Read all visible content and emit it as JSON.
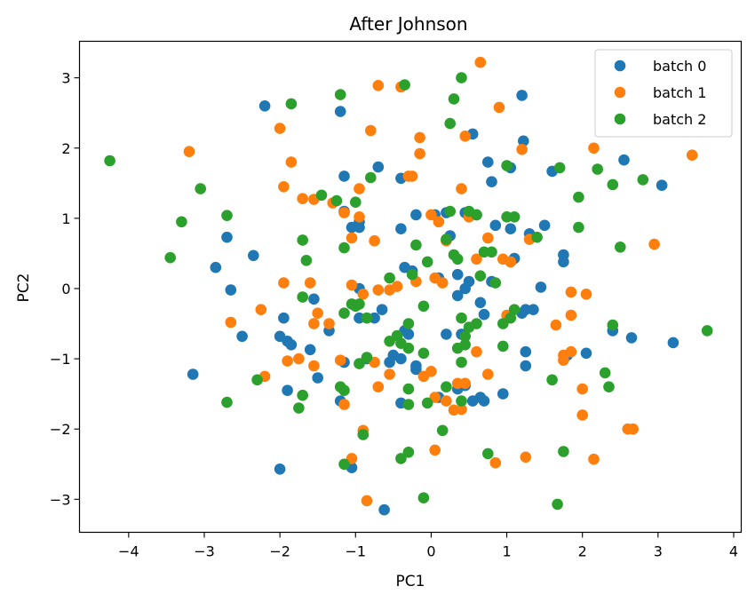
{
  "chart_data": {
    "type": "scatter",
    "title": "After Johnson",
    "xlabel": "PC1",
    "ylabel": "PC2",
    "xlim": [
      -4.65,
      4.1
    ],
    "ylim": [
      -3.47,
      3.52
    ],
    "xticks": [
      -4,
      -3,
      -2,
      -1,
      0,
      1,
      2,
      3,
      4
    ],
    "yticks": [
      -3,
      -2,
      -1,
      0,
      1,
      2,
      3
    ],
    "xtick_labels": [
      "−4",
      "−3",
      "−2",
      "−1",
      "0",
      "1",
      "2",
      "3",
      "4"
    ],
    "ytick_labels": [
      "−3",
      "−2",
      "−1",
      "0",
      "1",
      "2",
      "3"
    ],
    "grid": false,
    "legend_position": "upper right",
    "series": [
      {
        "name": "batch 0",
        "color": "#1f77b4",
        "points": [
          [
            -2.2,
            2.6
          ],
          [
            -1.2,
            2.52
          ],
          [
            1.2,
            2.75
          ],
          [
            0.55,
            2.2
          ],
          [
            1.22,
            2.1
          ],
          [
            2.55,
            1.83
          ],
          [
            -0.7,
            1.73
          ],
          [
            0.75,
            1.8
          ],
          [
            1.05,
            1.72
          ],
          [
            1.6,
            1.67
          ],
          [
            3.05,
            1.47
          ],
          [
            -1.15,
            1.6
          ],
          [
            -0.4,
            1.57
          ],
          [
            0.8,
            1.52
          ],
          [
            -1.15,
            1.1
          ],
          [
            -0.95,
            0.95
          ],
          [
            -0.2,
            1.05
          ],
          [
            0.05,
            1.05
          ],
          [
            0.2,
            1.08
          ],
          [
            0.45,
            1.08
          ],
          [
            0.6,
            1.05
          ],
          [
            0.85,
            0.9
          ],
          [
            -1.05,
            0.87
          ],
          [
            -0.95,
            0.87
          ],
          [
            -0.4,
            0.85
          ],
          [
            0.25,
            0.75
          ],
          [
            1.05,
            0.85
          ],
          [
            1.3,
            0.78
          ],
          [
            1.5,
            0.9
          ],
          [
            -2.7,
            0.73
          ],
          [
            -2.35,
            0.47
          ],
          [
            -2.85,
            0.3
          ],
          [
            1.75,
            0.48
          ],
          [
            1.75,
            0.38
          ],
          [
            1.1,
            0.43
          ],
          [
            1.05,
            0.38
          ],
          [
            -0.35,
            0.3
          ],
          [
            -0.25,
            0.25
          ],
          [
            0.35,
            0.2
          ],
          [
            0.1,
            0.15
          ],
          [
            0.5,
            0.1
          ],
          [
            0.8,
            0.1
          ],
          [
            -2.65,
            -0.02
          ],
          [
            -0.95,
            0.0
          ],
          [
            0.45,
            0.0
          ],
          [
            0.35,
            -0.1
          ],
          [
            1.45,
            0.02
          ],
          [
            -1.55,
            -0.15
          ],
          [
            -0.65,
            -0.3
          ],
          [
            0.65,
            -0.2
          ],
          [
            1.25,
            -0.3
          ],
          [
            1.35,
            -0.3
          ],
          [
            -1.95,
            -0.42
          ],
          [
            -0.75,
            -0.42
          ],
          [
            0.7,
            -0.37
          ],
          [
            1.2,
            -0.35
          ],
          [
            -0.95,
            -0.42
          ],
          [
            -0.35,
            -0.6
          ],
          [
            -1.35,
            -0.6
          ],
          [
            -2.5,
            -0.68
          ],
          [
            -2.0,
            -0.68
          ],
          [
            -1.9,
            -0.75
          ],
          [
            -1.85,
            -0.8
          ],
          [
            -0.3,
            -0.65
          ],
          [
            0.2,
            -0.65
          ],
          [
            0.4,
            -0.65
          ],
          [
            -1.6,
            -0.87
          ],
          [
            -0.5,
            -0.95
          ],
          [
            -0.4,
            -1.0
          ],
          [
            -0.55,
            -1.05
          ],
          [
            -0.85,
            -1.0
          ],
          [
            -1.15,
            -1.05
          ],
          [
            -0.2,
            -1.1
          ],
          [
            -0.2,
            -1.15
          ],
          [
            1.25,
            -0.9
          ],
          [
            2.05,
            -0.92
          ],
          [
            1.8,
            -0.95
          ],
          [
            2.4,
            -0.6
          ],
          [
            2.65,
            -0.7
          ],
          [
            3.2,
            -0.77
          ],
          [
            -3.15,
            -1.22
          ],
          [
            -1.5,
            -1.27
          ],
          [
            1.25,
            -1.1
          ],
          [
            -1.9,
            -1.45
          ],
          [
            -1.2,
            -1.6
          ],
          [
            0.1,
            -1.55
          ],
          [
            0.45,
            -1.38
          ],
          [
            0.95,
            -1.5
          ],
          [
            0.35,
            -1.43
          ],
          [
            -0.4,
            -1.63
          ],
          [
            0.55,
            -1.6
          ],
          [
            0.65,
            -1.55
          ],
          [
            0.7,
            -1.6
          ],
          [
            -2.0,
            -2.57
          ],
          [
            -1.05,
            -2.55
          ],
          [
            -0.62,
            -3.15
          ]
        ]
      },
      {
        "name": "batch 1",
        "color": "#ff7f0e",
        "points": [
          [
            0.65,
            3.22
          ],
          [
            -0.7,
            2.89
          ],
          [
            -0.4,
            2.87
          ],
          [
            0.9,
            2.58
          ],
          [
            -0.8,
            2.25
          ],
          [
            -2.0,
            2.28
          ],
          [
            1.2,
            1.98
          ],
          [
            2.15,
            2.0
          ],
          [
            3.45,
            1.9
          ],
          [
            -3.2,
            1.95
          ],
          [
            0.45,
            2.17
          ],
          [
            -0.15,
            2.15
          ],
          [
            -0.15,
            1.92
          ],
          [
            -1.85,
            1.8
          ],
          [
            -0.3,
            1.6
          ],
          [
            -0.25,
            1.6
          ],
          [
            -1.95,
            1.45
          ],
          [
            -0.95,
            1.42
          ],
          [
            0.4,
            1.42
          ],
          [
            -1.7,
            1.28
          ],
          [
            -1.55,
            1.27
          ],
          [
            -1.3,
            1.22
          ],
          [
            -1.15,
            1.08
          ],
          [
            -0.95,
            1.02
          ],
          [
            0.0,
            1.05
          ],
          [
            0.5,
            1.02
          ],
          [
            0.1,
            0.95
          ],
          [
            -1.05,
            0.72
          ],
          [
            -0.75,
            0.68
          ],
          [
            0.2,
            0.68
          ],
          [
            0.75,
            0.72
          ],
          [
            1.3,
            0.7
          ],
          [
            2.95,
            0.63
          ],
          [
            -1.95,
            0.08
          ],
          [
            -1.6,
            0.08
          ],
          [
            -1.05,
            0.05
          ],
          [
            0.05,
            0.15
          ],
          [
            0.15,
            0.08
          ],
          [
            0.95,
            0.42
          ],
          [
            1.05,
            0.38
          ],
          [
            0.6,
            0.42
          ],
          [
            -0.9,
            -0.08
          ],
          [
            -0.7,
            -0.02
          ],
          [
            -0.55,
            -0.02
          ],
          [
            -0.45,
            0.03
          ],
          [
            -0.2,
            0.1
          ],
          [
            1.85,
            -0.05
          ],
          [
            2.05,
            -0.08
          ],
          [
            -2.25,
            -0.3
          ],
          [
            -1.5,
            -0.35
          ],
          [
            -2.65,
            -0.48
          ],
          [
            -1.55,
            -0.5
          ],
          [
            -1.35,
            -0.5
          ],
          [
            1.65,
            -0.52
          ],
          [
            1.85,
            -0.38
          ],
          [
            1.0,
            -0.38
          ],
          [
            -1.2,
            -1.02
          ],
          [
            -1.9,
            -1.03
          ],
          [
            -1.75,
            -1.0
          ],
          [
            -1.55,
            -1.1
          ],
          [
            -0.75,
            -1.05
          ],
          [
            -0.55,
            -1.22
          ],
          [
            -0.1,
            -1.25
          ],
          [
            0.0,
            -1.18
          ],
          [
            0.6,
            -0.9
          ],
          [
            0.75,
            -1.22
          ],
          [
            1.75,
            -0.95
          ],
          [
            1.85,
            -0.9
          ],
          [
            1.75,
            -1.02
          ],
          [
            2.0,
            -1.43
          ],
          [
            -2.2,
            -1.25
          ],
          [
            -0.7,
            -1.4
          ],
          [
            0.2,
            -1.6
          ],
          [
            0.35,
            -1.35
          ],
          [
            0.45,
            -1.35
          ],
          [
            0.05,
            -1.55
          ],
          [
            0.3,
            -1.73
          ],
          [
            2.0,
            -1.8
          ],
          [
            -1.15,
            -1.65
          ],
          [
            0.4,
            -1.72
          ],
          [
            -0.9,
            -2.02
          ],
          [
            0.05,
            -2.3
          ],
          [
            0.85,
            -2.48
          ],
          [
            1.25,
            -2.4
          ],
          [
            2.15,
            -2.43
          ],
          [
            2.6,
            -2.0
          ],
          [
            2.67,
            -2.0
          ],
          [
            -1.05,
            -2.42
          ],
          [
            -0.85,
            -3.02
          ]
        ]
      },
      {
        "name": "batch 2",
        "color": "#2ca02c",
        "points": [
          [
            -0.35,
            2.9
          ],
          [
            0.4,
            3.0
          ],
          [
            -1.2,
            2.76
          ],
          [
            -1.85,
            2.63
          ],
          [
            0.3,
            2.7
          ],
          [
            0.25,
            2.35
          ],
          [
            -4.25,
            1.82
          ],
          [
            1.0,
            1.75
          ],
          [
            1.7,
            1.72
          ],
          [
            2.2,
            1.7
          ],
          [
            2.8,
            1.55
          ],
          [
            2.4,
            1.48
          ],
          [
            -3.05,
            1.42
          ],
          [
            -0.8,
            1.58
          ],
          [
            -1.45,
            1.33
          ],
          [
            -1.25,
            1.25
          ],
          [
            1.95,
            1.3
          ],
          [
            0.25,
            1.1
          ],
          [
            0.6,
            1.05
          ],
          [
            0.5,
            1.1
          ],
          [
            1.0,
            1.02
          ],
          [
            1.1,
            1.02
          ],
          [
            -2.7,
            1.04
          ],
          [
            -3.3,
            0.95
          ],
          [
            -1.0,
            1.23
          ],
          [
            1.95,
            0.87
          ],
          [
            -0.2,
            0.62
          ],
          [
            0.2,
            0.7
          ],
          [
            -1.15,
            0.58
          ],
          [
            -1.7,
            0.69
          ],
          [
            1.4,
            0.73
          ],
          [
            2.5,
            0.59
          ],
          [
            -3.45,
            0.44
          ],
          [
            -1.65,
            0.4
          ],
          [
            0.35,
            0.42
          ],
          [
            0.3,
            0.48
          ],
          [
            0.7,
            0.52
          ],
          [
            0.8,
            0.52
          ],
          [
            -0.55,
            0.15
          ],
          [
            -0.05,
            0.38
          ],
          [
            -0.25,
            0.2
          ],
          [
            0.65,
            0.18
          ],
          [
            0.85,
            0.08
          ],
          [
            -1.7,
            -0.12
          ],
          [
            -0.1,
            -0.25
          ],
          [
            -0.95,
            -0.22
          ],
          [
            -1.05,
            -0.22
          ],
          [
            -1.15,
            -0.35
          ],
          [
            -1.0,
            -0.25
          ],
          [
            -0.85,
            -0.42
          ],
          [
            0.4,
            -0.42
          ],
          [
            0.6,
            -0.5
          ],
          [
            0.95,
            -0.5
          ],
          [
            1.05,
            -0.42
          ],
          [
            1.1,
            -0.3
          ],
          [
            -0.3,
            -0.5
          ],
          [
            0.5,
            -0.55
          ],
          [
            0.45,
            -0.68
          ],
          [
            -0.55,
            -0.75
          ],
          [
            -0.45,
            -0.67
          ],
          [
            -0.4,
            -0.78
          ],
          [
            -0.3,
            -0.85
          ],
          [
            0.45,
            -0.8
          ],
          [
            0.35,
            -0.85
          ],
          [
            0.95,
            -0.82
          ],
          [
            2.4,
            -0.52
          ],
          [
            -0.95,
            -1.07
          ],
          [
            -0.85,
            -0.98
          ],
          [
            0.4,
            -1.05
          ],
          [
            -0.1,
            -0.92
          ],
          [
            -1.2,
            -1.4
          ],
          [
            -1.15,
            -1.45
          ],
          [
            -1.7,
            -1.52
          ],
          [
            -0.3,
            -1.43
          ],
          [
            -2.3,
            -1.3
          ],
          [
            -2.7,
            -1.62
          ],
          [
            0.2,
            -1.4
          ],
          [
            0.4,
            -1.6
          ],
          [
            -0.3,
            -1.65
          ],
          [
            -0.05,
            -1.63
          ],
          [
            1.6,
            -1.3
          ],
          [
            2.3,
            -1.2
          ],
          [
            2.35,
            -1.4
          ],
          [
            -1.75,
            -1.7
          ],
          [
            -0.9,
            -2.08
          ],
          [
            0.15,
            -2.02
          ],
          [
            -1.15,
            -2.5
          ],
          [
            -0.3,
            -2.33
          ],
          [
            -0.4,
            -2.42
          ],
          [
            0.75,
            -2.35
          ],
          [
            1.75,
            -2.32
          ],
          [
            -0.1,
            -2.98
          ],
          [
            1.67,
            -3.07
          ],
          [
            3.65,
            -0.6
          ]
        ]
      }
    ]
  }
}
